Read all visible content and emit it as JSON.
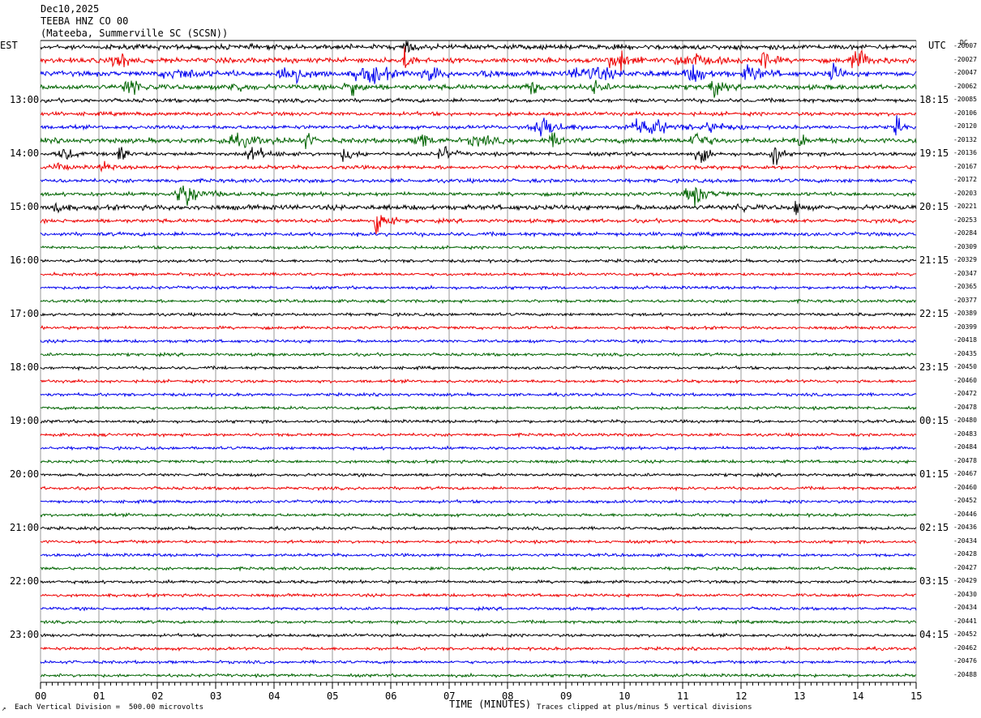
{
  "header": {
    "date": "Dec10,2025",
    "station": "TEEBA HNZ CO 00",
    "location": "(Mateeba, Summerville SC (SCSN))"
  },
  "labels": {
    "left_tz": "EST",
    "right_tz": "UTC",
    "dc": "DC",
    "xlabel": "TIME (MINUTES)",
    "footer_left": "Each Vertical Division =  500.00 microvolts",
    "footer_right": "Traces clipped at plus/minus 5 vertical divisions",
    "corner_mark": "↗"
  },
  "colors": [
    "#000000",
    "#ee0000",
    "#0000ee",
    "#006400"
  ],
  "chart_data": {
    "type": "line",
    "title": "TEEBA HNZ CO 00",
    "xlabel": "TIME (MINUTES)",
    "xlim": [
      0,
      15
    ],
    "x_ticks": [
      "00",
      "01",
      "02",
      "03",
      "04",
      "05",
      "06",
      "07",
      "08",
      "09",
      "10",
      "11",
      "12",
      "13",
      "14",
      "15"
    ],
    "left_hour_labels": [
      "13:00",
      "14:00",
      "15:00",
      "16:00",
      "17:00",
      "18:00",
      "19:00",
      "20:00",
      "21:00",
      "22:00",
      "23:00"
    ],
    "right_hour_labels": [
      "18:15",
      "19:15",
      "20:15",
      "21:15",
      "22:15",
      "23:15",
      "00:15",
      "01:15",
      "02:15",
      "03:15",
      "04:15"
    ],
    "dc_offsets": [
      -20007,
      -20027,
      -20047,
      -20062,
      -20085,
      -20106,
      -20120,
      -20132,
      -20136,
      -20167,
      -20172,
      -20203,
      -20221,
      -20253,
      -20284,
      -20309,
      -20329,
      -20347,
      -20365,
      -20377,
      -20389,
      -20399,
      -20418,
      -20435,
      -20450,
      -20460,
      -20472,
      -20478,
      -20480,
      -20483,
      -20484,
      -20478,
      -20467,
      -20460,
      -20452,
      -20446,
      -20436,
      -20434,
      -20428,
      -20427,
      -20429,
      -20430,
      -20434,
      -20441,
      -20452,
      -20462,
      -20476,
      -20488
    ],
    "noise": [
      2,
      2,
      2,
      2,
      1.5,
      1.5,
      1.5,
      2,
      1.5,
      1.5,
      1.5,
      1.5,
      2,
      1.5,
      1.5,
      1.2,
      1.2,
      1.2,
      1.2,
      1.2,
      1.2,
      1.2,
      1.2,
      1.2,
      1.2,
      1.2,
      1.2,
      1.2,
      1.2,
      1.2,
      1.2,
      1.2,
      1.2,
      1.2,
      1.2,
      1.2,
      1.2,
      1.2,
      1.2,
      1.2,
      1.2,
      1.2,
      1.2,
      1.2,
      1.2,
      1.2,
      1.2,
      1.2
    ],
    "events": [
      [
        6.2,
        0.3,
        8,
        0
      ],
      [
        1.2,
        0.6,
        7,
        1
      ],
      [
        6.2,
        0.25,
        12,
        1
      ],
      [
        9.7,
        0.7,
        8,
        1
      ],
      [
        10.8,
        1.2,
        5,
        1
      ],
      [
        12.3,
        0.4,
        7,
        1
      ],
      [
        13.8,
        0.8,
        6,
        1
      ],
      [
        2.0,
        1.5,
        3,
        2
      ],
      [
        4.0,
        1.0,
        7,
        2
      ],
      [
        5.3,
        1.4,
        6,
        2
      ],
      [
        6.6,
        0.4,
        8,
        2
      ],
      [
        7.5,
        0.4,
        6,
        2
      ],
      [
        9.0,
        1.6,
        5,
        2
      ],
      [
        11.0,
        0.8,
        6,
        2
      ],
      [
        12.0,
        0.7,
        6,
        2
      ],
      [
        13.5,
        0.4,
        8,
        2
      ],
      [
        1.4,
        0.6,
        7,
        3
      ],
      [
        3.2,
        0.5,
        4,
        3
      ],
      [
        5.2,
        0.4,
        10,
        3
      ],
      [
        8.3,
        0.4,
        6,
        3
      ],
      [
        9.4,
        0.4,
        5,
        3
      ],
      [
        11.4,
        0.4,
        8,
        3
      ],
      [
        8.3,
        1.2,
        7,
        6
      ],
      [
        10.0,
        1.5,
        6,
        6
      ],
      [
        11.3,
        0.8,
        4,
        6
      ],
      [
        14.6,
        0.3,
        7,
        6
      ],
      [
        3.0,
        1.6,
        3,
        7
      ],
      [
        4.5,
        0.3,
        6,
        7
      ],
      [
        6.4,
        0.5,
        6,
        7
      ],
      [
        7.3,
        0.8,
        4,
        7
      ],
      [
        8.7,
        0.5,
        5,
        7
      ],
      [
        11.1,
        0.6,
        7,
        7
      ],
      [
        12.9,
        0.4,
        5,
        7
      ],
      [
        0.3,
        0.5,
        5,
        8
      ],
      [
        1.3,
        0.4,
        7,
        8
      ],
      [
        3.4,
        1.0,
        4,
        8
      ],
      [
        5.1,
        0.5,
        5,
        8
      ],
      [
        6.8,
        0.4,
        6,
        8
      ],
      [
        11.2,
        0.5,
        6,
        8
      ],
      [
        12.5,
        0.3,
        11,
        8
      ],
      [
        0.2,
        0.4,
        4,
        9
      ],
      [
        1.0,
        0.3,
        5,
        9
      ],
      [
        2.3,
        0.8,
        10,
        11
      ],
      [
        11.0,
        0.8,
        8,
        11
      ],
      [
        0.2,
        0.3,
        5,
        12
      ],
      [
        11.9,
        0.4,
        4,
        12
      ],
      [
        12.9,
        0.2,
        7,
        12
      ],
      [
        5.7,
        0.4,
        16,
        13
      ]
    ]
  }
}
